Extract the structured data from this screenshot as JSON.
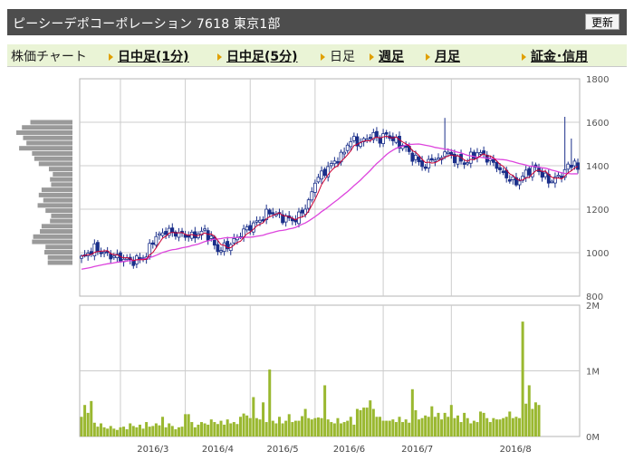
{
  "header": {
    "title": "ピーシーデポコーポレーション 7618 東京1部",
    "refresh_label": "更新"
  },
  "tabs": [
    {
      "label": "株価チャート",
      "link": false,
      "arrow": false
    },
    {
      "label": "日中足(1分)",
      "link": true,
      "arrow": true
    },
    {
      "label": "日中足(5分)",
      "link": true,
      "arrow": true
    },
    {
      "label": "日足",
      "link": false,
      "arrow": true
    },
    {
      "label": "週足",
      "link": true,
      "arrow": true
    },
    {
      "label": "月足",
      "link": true,
      "arrow": true
    },
    {
      "label": "証金･信用",
      "link": true,
      "arrow": true
    }
  ],
  "colors": {
    "up": "#ffffff",
    "down": "#1a2f8a",
    "ma_short": "#cc0033",
    "ma_long": "#dd44dd",
    "volume": "#9ab830",
    "profile": "#9a9a9a",
    "grid": "#cccccc"
  },
  "chart_data": [
    {
      "type": "candlestick",
      "name": "price",
      "ylim": [
        800,
        1800
      ],
      "y_ticks": [
        "800",
        "1000",
        "1200",
        "1400",
        "1600",
        "1800"
      ],
      "x_ticks": [
        "2016/3",
        "2016/4",
        "2016/5",
        "2016/6",
        "2016/7",
        "2016/8"
      ],
      "anchors": [
        [
          0,
          975
        ],
        [
          4,
          1020
        ],
        [
          8,
          990
        ],
        [
          12,
          975
        ],
        [
          16,
          960
        ],
        [
          20,
          985
        ],
        [
          22,
          1060
        ],
        [
          26,
          1100
        ],
        [
          30,
          1085
        ],
        [
          34,
          1075
        ],
        [
          38,
          1100
        ],
        [
          40,
          1060
        ],
        [
          42,
          1010
        ],
        [
          46,
          1040
        ],
        [
          50,
          1100
        ],
        [
          54,
          1140
        ],
        [
          58,
          1190
        ],
        [
          62,
          1160
        ],
        [
          66,
          1150
        ],
        [
          68,
          1190
        ],
        [
          70,
          1230
        ],
        [
          72,
          1330
        ],
        [
          74,
          1360
        ],
        [
          76,
          1390
        ],
        [
          78,
          1420
        ],
        [
          80,
          1440
        ],
        [
          82,
          1500
        ],
        [
          84,
          1520
        ],
        [
          86,
          1500
        ],
        [
          88,
          1530
        ],
        [
          90,
          1540
        ],
        [
          92,
          1520
        ],
        [
          94,
          1545
        ],
        [
          96,
          1520
        ],
        [
          98,
          1500
        ],
        [
          100,
          1480
        ],
        [
          102,
          1440
        ],
        [
          104,
          1420
        ],
        [
          106,
          1390
        ],
        [
          108,
          1440
        ],
        [
          110,
          1420
        ],
        [
          112,
          1470
        ],
        [
          114,
          1440
        ],
        [
          116,
          1430
        ],
        [
          118,
          1410
        ],
        [
          120,
          1440
        ],
        [
          122,
          1460
        ],
        [
          124,
          1450
        ],
        [
          126,
          1420
        ],
        [
          128,
          1400
        ],
        [
          130,
          1360
        ],
        [
          132,
          1340
        ],
        [
          134,
          1320
        ],
        [
          136,
          1350
        ],
        [
          138,
          1380
        ],
        [
          140,
          1390
        ],
        [
          142,
          1360
        ],
        [
          144,
          1330
        ],
        [
          146,
          1340
        ],
        [
          148,
          1360
        ],
        [
          150,
          1395
        ],
        [
          152,
          1420
        ],
        [
          153,
          1375
        ]
      ],
      "months": [
        "2016/3",
        "2016/4",
        "2016/5",
        "2016/6",
        "2016/7",
        "2016/8"
      ],
      "month_starts": [
        12,
        32,
        52,
        72,
        93,
        114
      ],
      "spikes": [
        [
          112,
          1620
        ],
        [
          149,
          1625
        ],
        [
          151,
          1525
        ]
      ]
    },
    {
      "type": "bar",
      "name": "volume",
      "ylim": [
        0,
        2000000
      ],
      "y_ticks": [
        "0M",
        "1M",
        "2M"
      ],
      "values_k": [
        300,
        480,
        360,
        540,
        210,
        150,
        200,
        140,
        120,
        160,
        120,
        100,
        140,
        150,
        110,
        200,
        160,
        140,
        180,
        120,
        220,
        150,
        160,
        200,
        170,
        300,
        140,
        200,
        160,
        110,
        140,
        150,
        340,
        340,
        220,
        140,
        180,
        220,
        200,
        180,
        260,
        220,
        190,
        240,
        180,
        260,
        200,
        220,
        190,
        300,
        350,
        320,
        280,
        600,
        280,
        260,
        520,
        220,
        1020,
        240,
        200,
        300,
        200,
        240,
        340,
        220,
        240,
        240,
        310,
        420,
        280,
        260,
        280,
        290,
        280,
        780,
        260,
        220,
        200,
        280,
        200,
        220,
        240,
        300,
        180,
        420,
        400,
        440,
        440,
        550,
        420,
        300,
        300,
        240,
        240,
        240,
        260,
        220,
        300,
        220,
        260,
        210,
        720,
        400,
        260,
        280,
        320,
        300,
        460,
        300,
        360,
        260,
        360,
        300,
        480,
        280,
        320,
        220,
        360,
        280,
        200,
        240,
        220,
        380,
        360,
        280,
        220,
        280,
        260,
        260,
        280,
        300,
        380,
        280,
        300,
        280,
        1750,
        500,
        780,
        420,
        520,
        480
      ]
    },
    {
      "type": "bar",
      "name": "price-volume-profile",
      "values": [
        0.75,
        0.9,
        1.0,
        0.88,
        0.82,
        0.95,
        0.72,
        0.68,
        0.6,
        0.42,
        0.35,
        0.4,
        0.38,
        0.55,
        0.6,
        0.52,
        0.62,
        0.48,
        0.38,
        0.4,
        0.55,
        0.58,
        0.7,
        0.72,
        0.48,
        0.5,
        0.44,
        0.44
      ]
    }
  ]
}
